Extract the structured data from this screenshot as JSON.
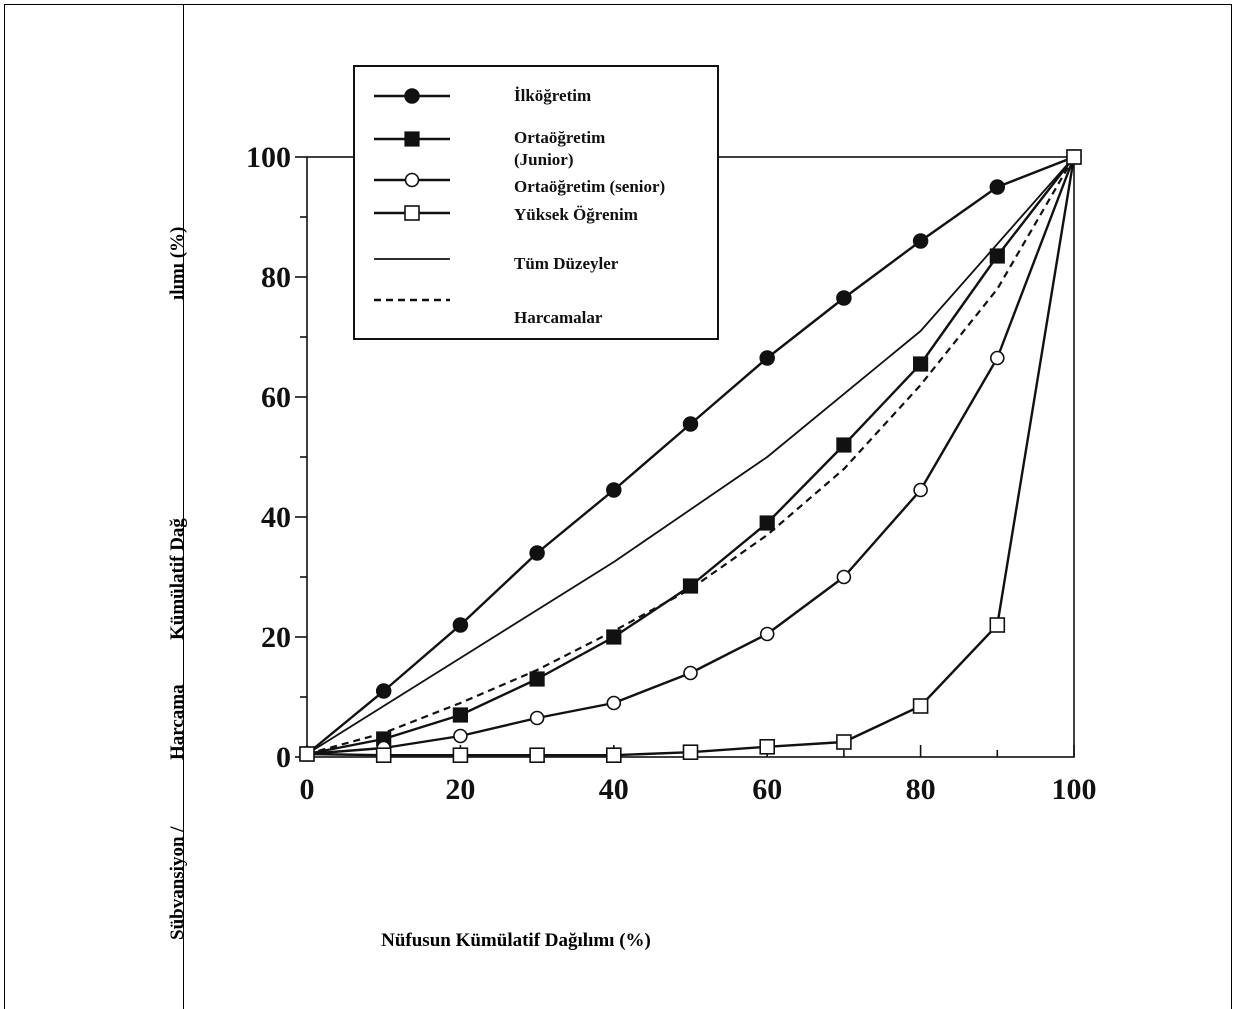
{
  "chart_data": {
    "type": "line",
    "xlabel": "Nüfusun Kümülatif Dağılımı (%)",
    "ylabel_parts": [
      "Sübvansiyon /",
      "Harcama",
      "Kümülatif Dağ",
      "ılımı (%)"
    ],
    "xlim": [
      0,
      100
    ],
    "ylim": [
      0,
      100
    ],
    "x_ticks": [
      "0",
      "20",
      "40",
      "60",
      "80",
      "100"
    ],
    "y_ticks": [
      "0",
      "20",
      "40",
      "60",
      "80",
      "100"
    ],
    "legend_position": "top-left",
    "grid": false,
    "series": [
      {
        "name": "İlköğretim",
        "style": "filled-circle",
        "color": "#111111",
        "x": [
          0,
          10,
          20,
          30,
          40,
          50,
          60,
          70,
          80,
          90,
          100
        ],
        "y": [
          0.5,
          11,
          22,
          34,
          44.5,
          55.5,
          66.5,
          76.5,
          86,
          95,
          100
        ]
      },
      {
        "name": "Ortaöğretim (Junior)",
        "style": "filled-square",
        "color": "#111111",
        "x": [
          0,
          10,
          20,
          30,
          40,
          50,
          60,
          70,
          80,
          90,
          100
        ],
        "y": [
          0.5,
          3,
          7,
          13,
          20,
          28.5,
          39,
          52,
          65.5,
          83.5,
          100
        ]
      },
      {
        "name": "Ortaöğretim (senior)",
        "style": "open-circle",
        "color": "#111111",
        "x": [
          0,
          10,
          20,
          30,
          40,
          50,
          60,
          70,
          80,
          90,
          100
        ],
        "y": [
          0.5,
          1.5,
          3.5,
          6.5,
          9,
          14,
          20.5,
          30,
          44.5,
          66.5,
          100
        ]
      },
      {
        "name": "Yüksek Öğrenim",
        "style": "open-square",
        "color": "#111111",
        "x": [
          0,
          10,
          20,
          30,
          40,
          50,
          60,
          70,
          80,
          90,
          100
        ],
        "y": [
          0.5,
          0.3,
          0.3,
          0.3,
          0.3,
          0.8,
          1.7,
          2.5,
          8.5,
          22,
          100
        ]
      },
      {
        "name": "Tüm Düzeyler",
        "style": "line",
        "color": "#111111",
        "x": [
          0,
          20,
          40,
          60,
          80,
          100
        ],
        "y": [
          0.5,
          16.5,
          32.5,
          50,
          71,
          100
        ]
      },
      {
        "name": "Harcamalar",
        "style": "dashed",
        "color": "#111111",
        "x": [
          0,
          10,
          20,
          30,
          40,
          50,
          60,
          70,
          80,
          90,
          100
        ],
        "y": [
          0.5,
          4,
          9,
          14.5,
          21,
          28,
          37,
          48,
          62,
          78,
          100
        ]
      }
    ]
  }
}
